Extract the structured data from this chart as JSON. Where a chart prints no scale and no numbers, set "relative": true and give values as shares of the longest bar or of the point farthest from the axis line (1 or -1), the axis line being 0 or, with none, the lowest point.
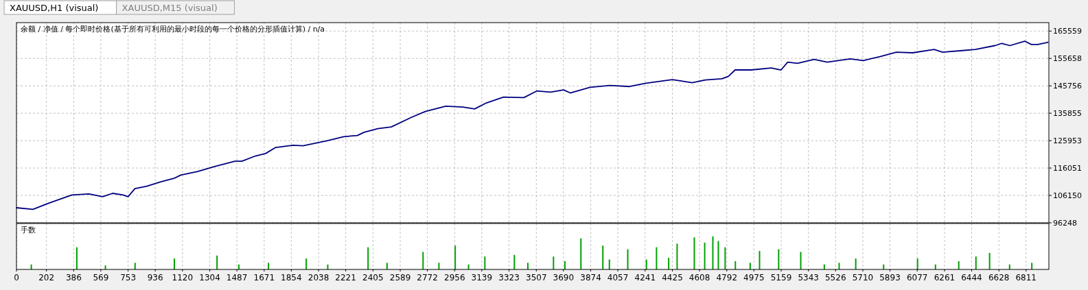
{
  "chart_data": [
    {
      "type": "line",
      "title": "余额 / 净值 / 每个即时价格(基于所有可利用的最小时段的每一个价格的分形插值计算) / n/a",
      "annotations": [
        "XAUUSD,H1 (visual)",
        "XAUUSD,M15 (visual)"
      ],
      "x": [
        0,
        111,
        214,
        374,
        489,
        581,
        649,
        719,
        753,
        799,
        879,
        971,
        1062,
        1108,
        1223,
        1337,
        1474,
        1521,
        1612,
        1681,
        1749,
        1864,
        1933,
        2094,
        2208,
        2300,
        2346,
        2438,
        2529,
        2666,
        2758,
        2896,
        3011,
        3091,
        3171,
        3286,
        3423,
        3510,
        3603,
        3691,
        3736,
        3869,
        4003,
        4136,
        4247,
        4425,
        4559,
        4648,
        4759,
        4803,
        4848,
        4958,
        5092,
        5158,
        5203,
        5269,
        5381,
        5470,
        5625,
        5713,
        5825,
        5936,
        6046,
        6191,
        6247,
        6381,
        6469,
        6602,
        6647,
        6702,
        6802,
        6847,
        6891,
        6959
      ],
      "series": [
        {
          "color": "#000080",
          "values": [
            101700,
            101100,
            103300,
            106300,
            106700,
            105700,
            106900,
            106300,
            105700,
            108600,
            109500,
            111000,
            112300,
            113500,
            114800,
            116600,
            118500,
            118500,
            120400,
            121300,
            123500,
            124300,
            124100,
            125900,
            127400,
            127800,
            129000,
            130300,
            130900,
            134400,
            136500,
            138400,
            138100,
            137400,
            139600,
            141700,
            141500,
            143900,
            143500,
            144300,
            143200,
            145200,
            145900,
            145500,
            146700,
            148000,
            146900,
            147900,
            148300,
            149200,
            151500,
            151500,
            152200,
            151500,
            154300,
            153900,
            155300,
            154300,
            155500,
            154900,
            156300,
            157900,
            157700,
            158900,
            157900,
            158500,
            158900,
            160300,
            161100,
            160300,
            161900,
            160700,
            160700,
            161500
          ]
        }
      ],
      "xlim": [
        0,
        6965
      ],
      "xticks": [
        0,
        202,
        386,
        569,
        753,
        936,
        1120,
        1304,
        1487,
        1671,
        1854,
        2038,
        2221,
        2405,
        2589,
        2772,
        2956,
        3139,
        3323,
        3507,
        3690,
        3874,
        4057,
        4241,
        4425,
        4608,
        4792,
        4975,
        5159,
        5343,
        5526,
        5710,
        5893,
        6077,
        6261,
        6444,
        6628,
        6811
      ],
      "ylim": [
        96248,
        168600
      ],
      "yticks": [
        96248,
        106150,
        116051,
        125953,
        135855,
        145756,
        155658,
        165559
      ],
      "grid": true,
      "tick_labels": "y"
    },
    {
      "type": "bar",
      "title": "手数",
      "relative": true,
      "color": "#00a000",
      "x": [
        100,
        407,
        600,
        800,
        1065,
        1353,
        1500,
        1700,
        1955,
        2100,
        2372,
        2500,
        2743,
        2850,
        2960,
        3050,
        3160,
        3359,
        3450,
        3623,
        3700,
        3808,
        3956,
        4000,
        4124,
        4250,
        4318,
        4400,
        4457,
        4573,
        4643,
        4698,
        4735,
        4781,
        4850,
        4950,
        5013,
        5142,
        5291,
        5450,
        5550,
        5662,
        5850,
        6079,
        6200,
        6357,
        6473,
        6565,
        6700,
        6850
      ],
      "values": [
        0.15,
        0.67,
        0.12,
        0.2,
        0.33,
        0.42,
        0.15,
        0.2,
        0.33,
        0.15,
        0.67,
        0.2,
        0.53,
        0.2,
        0.72,
        0.15,
        0.39,
        0.44,
        0.2,
        0.39,
        0.25,
        0.94,
        0.72,
        0.3,
        0.61,
        0.3,
        0.67,
        0.35,
        0.78,
        0.97,
        0.81,
        1,
        0.86,
        0.67,
        0.25,
        0.2,
        0.56,
        0.61,
        0.53,
        0.15,
        0.2,
        0.33,
        0.15,
        0.33,
        0.15,
        0.25,
        0.39,
        0.5,
        0.15,
        0.2
      ],
      "xlim": [
        0,
        6965
      ],
      "xticks": [
        0,
        202,
        386,
        569,
        753,
        936,
        1120,
        1304,
        1487,
        1671,
        1854,
        2038,
        2221,
        2405,
        2589,
        2772,
        2956,
        3139,
        3323,
        3507,
        3690,
        3874,
        4057,
        4241,
        4425,
        4608,
        4792,
        4975,
        5159,
        5343,
        5526,
        5710,
        5893,
        6077,
        6261,
        6444,
        6628,
        6811
      ],
      "grid": "x",
      "tick_labels": "x"
    }
  ]
}
